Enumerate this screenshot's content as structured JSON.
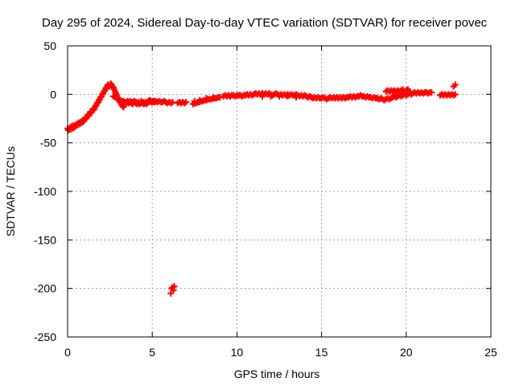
{
  "chart_data": {
    "type": "scatter",
    "title": "Day 295 of 2024, Sidereal Day-to-day VTEC variation (SDTVAR) for receiver povec",
    "xlabel": "GPS time / hours",
    "ylabel": "SDTVAR / TECUs",
    "xlim": [
      0,
      25
    ],
    "ylim": [
      -250,
      50
    ],
    "xticks": [
      0,
      5,
      10,
      15,
      20,
      25
    ],
    "xtick_labels": [
      "0",
      "5",
      "10",
      "15",
      "20",
      "25"
    ],
    "yticks": [
      -250,
      -200,
      -150,
      -100,
      -50,
      0,
      50
    ],
    "ytick_labels": [
      "-250",
      "-200",
      "-150",
      "-100",
      "-50",
      "0",
      "50"
    ],
    "grid": true,
    "marker": "plus",
    "series": [
      {
        "name": "SDTVAR",
        "color": "#ff0000",
        "points": [
          [
            0.0,
            -35
          ],
          [
            0.05,
            -37
          ],
          [
            0.1,
            -36
          ],
          [
            0.15,
            -34
          ],
          [
            0.2,
            -36
          ],
          [
            0.25,
            -33
          ],
          [
            0.3,
            -35
          ],
          [
            0.35,
            -32
          ],
          [
            0.4,
            -34
          ],
          [
            0.45,
            -33
          ],
          [
            0.5,
            -31
          ],
          [
            0.55,
            -32
          ],
          [
            0.6,
            -30
          ],
          [
            0.65,
            -31
          ],
          [
            0.7,
            -29
          ],
          [
            0.75,
            -30
          ],
          [
            0.8,
            -28
          ],
          [
            0.85,
            -29
          ],
          [
            0.9,
            -27
          ],
          [
            0.95,
            -28
          ],
          [
            1.0,
            -26
          ],
          [
            1.05,
            -24
          ],
          [
            1.1,
            -25
          ],
          [
            1.15,
            -23
          ],
          [
            1.2,
            -21
          ],
          [
            1.25,
            -22
          ],
          [
            1.3,
            -20
          ],
          [
            1.35,
            -18
          ],
          [
            1.4,
            -19
          ],
          [
            1.45,
            -17
          ],
          [
            1.5,
            -15
          ],
          [
            1.55,
            -16
          ],
          [
            1.6,
            -14
          ],
          [
            1.65,
            -12
          ],
          [
            1.7,
            -11
          ],
          [
            1.75,
            -9
          ],
          [
            1.8,
            -8
          ],
          [
            1.85,
            -6
          ],
          [
            1.9,
            -5
          ],
          [
            1.95,
            -3
          ],
          [
            2.0,
            -2
          ],
          [
            2.05,
            0
          ],
          [
            2.1,
            1
          ],
          [
            2.15,
            3
          ],
          [
            2.2,
            4
          ],
          [
            2.25,
            6
          ],
          [
            2.3,
            7
          ],
          [
            2.35,
            9
          ],
          [
            2.4,
            10
          ],
          [
            2.45,
            8
          ],
          [
            2.5,
            9
          ],
          [
            2.55,
            11
          ],
          [
            2.6,
            10
          ],
          [
            2.65,
            8
          ],
          [
            2.7,
            7
          ],
          [
            2.75,
            5
          ],
          [
            2.8,
            3
          ],
          [
            2.85,
            1
          ],
          [
            2.9,
            -1
          ],
          [
            2.95,
            -3
          ],
          [
            3.0,
            -5
          ],
          [
            3.05,
            -6
          ],
          [
            3.1,
            -8
          ],
          [
            3.15,
            -9
          ],
          [
            3.2,
            -11
          ],
          [
            3.25,
            -12
          ],
          [
            3.3,
            -13
          ],
          [
            3.35,
            -11
          ],
          [
            2.7,
            -2
          ],
          [
            2.8,
            -3
          ],
          [
            2.9,
            -4
          ],
          [
            3.0,
            -5
          ],
          [
            3.1,
            -6
          ],
          [
            3.2,
            -7
          ],
          [
            3.3,
            -7
          ],
          [
            3.4,
            -8
          ],
          [
            3.5,
            -8
          ],
          [
            3.55,
            -7
          ],
          [
            3.6,
            -9
          ],
          [
            3.65,
            -8
          ],
          [
            3.7,
            -7
          ],
          [
            3.75,
            -9
          ],
          [
            3.8,
            -8
          ],
          [
            3.85,
            -10
          ],
          [
            3.9,
            -8
          ],
          [
            3.95,
            -7
          ],
          [
            4.0,
            -9
          ],
          [
            4.05,
            -8
          ],
          [
            4.1,
            -10
          ],
          [
            4.15,
            -9
          ],
          [
            4.2,
            -8
          ],
          [
            4.25,
            -10
          ],
          [
            4.3,
            -9
          ],
          [
            4.35,
            -7
          ],
          [
            4.4,
            -9
          ],
          [
            4.45,
            -8
          ],
          [
            4.5,
            -10
          ],
          [
            4.55,
            -9
          ],
          [
            4.6,
            -8
          ],
          [
            4.65,
            -10
          ],
          [
            4.7,
            -9
          ],
          [
            4.75,
            -7
          ],
          [
            4.8,
            -8
          ],
          [
            4.85,
            -6
          ],
          [
            4.9,
            -7
          ],
          [
            4.95,
            -8
          ],
          [
            5.0,
            -7
          ],
          [
            5.05,
            -8
          ],
          [
            5.1,
            -7
          ],
          [
            5.15,
            -8
          ],
          [
            5.2,
            -7
          ],
          [
            5.3,
            -8
          ],
          [
            5.4,
            -7
          ],
          [
            5.5,
            -8
          ],
          [
            5.6,
            -8
          ],
          [
            5.7,
            -7
          ],
          [
            5.8,
            -8
          ],
          [
            5.9,
            -9
          ],
          [
            6.0,
            -8
          ],
          [
            6.1,
            -9
          ],
          [
            6.2,
            -8
          ],
          [
            6.5,
            -9
          ],
          [
            6.6,
            -8
          ],
          [
            6.7,
            -9
          ],
          [
            6.8,
            -8
          ],
          [
            6.9,
            -9
          ],
          [
            7.0,
            -8
          ],
          [
            6.1,
            -205
          ],
          [
            6.15,
            -200
          ],
          [
            6.2,
            -199
          ],
          [
            6.25,
            -202
          ],
          [
            6.3,
            -198
          ],
          [
            7.4,
            -10
          ],
          [
            7.5,
            -9
          ],
          [
            7.6,
            -9
          ],
          [
            7.7,
            -8
          ],
          [
            7.8,
            -8
          ],
          [
            7.9,
            -7
          ],
          [
            8.0,
            -7
          ],
          [
            8.1,
            -6
          ],
          [
            8.2,
            -6
          ],
          [
            8.3,
            -5
          ],
          [
            8.4,
            -5
          ],
          [
            8.5,
            -5
          ],
          [
            8.6,
            -4
          ],
          [
            8.7,
            -4
          ],
          [
            8.8,
            -4
          ],
          [
            8.9,
            -3
          ],
          [
            9.0,
            -3
          ],
          [
            7.5,
            -7
          ],
          [
            7.8,
            -6
          ],
          [
            8.2,
            -4
          ],
          [
            8.6,
            -3
          ],
          [
            9.2,
            -2
          ],
          [
            9.3,
            -1
          ],
          [
            9.4,
            -2
          ],
          [
            9.5,
            -1
          ],
          [
            9.6,
            -2
          ],
          [
            9.7,
            -1
          ],
          [
            9.8,
            -1
          ],
          [
            9.9,
            -2
          ],
          [
            10.0,
            -1
          ],
          [
            10.1,
            -1
          ],
          [
            10.2,
            -1
          ],
          [
            10.3,
            -2
          ],
          [
            10.4,
            -1
          ],
          [
            10.5,
            -1
          ],
          [
            10.6,
            0
          ],
          [
            10.7,
            -1
          ],
          [
            10.8,
            0
          ],
          [
            10.9,
            -1
          ],
          [
            11.0,
            0
          ],
          [
            11.1,
            1
          ],
          [
            11.2,
            0
          ],
          [
            11.3,
            1
          ],
          [
            11.4,
            0
          ],
          [
            11.5,
            1
          ],
          [
            11.6,
            0
          ],
          [
            11.7,
            1
          ],
          [
            11.8,
            0
          ],
          [
            11.9,
            1
          ],
          [
            12.0,
            0
          ],
          [
            12.1,
            -1
          ],
          [
            12.2,
            0
          ],
          [
            12.3,
            1
          ],
          [
            12.4,
            0
          ],
          [
            12.5,
            -1
          ],
          [
            12.6,
            0
          ],
          [
            12.7,
            -1
          ],
          [
            12.8,
            0
          ],
          [
            12.9,
            -1
          ],
          [
            13.0,
            0
          ],
          [
            13.1,
            -1
          ],
          [
            13.2,
            0
          ],
          [
            13.3,
            -1
          ],
          [
            13.4,
            -1
          ],
          [
            13.5,
            0
          ],
          [
            13.6,
            -1
          ],
          [
            13.7,
            -2
          ],
          [
            13.8,
            -1
          ],
          [
            13.9,
            -2
          ],
          [
            14.0,
            -1
          ],
          [
            14.1,
            -2
          ],
          [
            11.5,
            -2
          ],
          [
            12.0,
            -2
          ],
          [
            12.5,
            -2
          ],
          [
            13.0,
            -2
          ],
          [
            13.5,
            -3
          ],
          [
            14.2,
            -3
          ],
          [
            14.3,
            -2
          ],
          [
            14.4,
            -3
          ],
          [
            14.5,
            -4
          ],
          [
            14.6,
            -3
          ],
          [
            14.7,
            -4
          ],
          [
            14.8,
            -3
          ],
          [
            14.9,
            -4
          ],
          [
            15.0,
            -4
          ],
          [
            15.1,
            -3
          ],
          [
            15.2,
            -4
          ],
          [
            15.3,
            -5
          ],
          [
            15.4,
            -4
          ],
          [
            15.5,
            -3
          ],
          [
            15.6,
            -4
          ],
          [
            15.7,
            -3
          ],
          [
            15.8,
            -4
          ],
          [
            15.9,
            -3
          ],
          [
            16.0,
            -4
          ],
          [
            16.1,
            -3
          ],
          [
            16.2,
            -4
          ],
          [
            16.3,
            -3
          ],
          [
            16.4,
            -4
          ],
          [
            16.5,
            -3
          ],
          [
            16.6,
            -3
          ],
          [
            16.7,
            -2
          ],
          [
            16.8,
            -3
          ],
          [
            16.9,
            -2
          ],
          [
            17.0,
            -3
          ],
          [
            17.1,
            -2
          ],
          [
            17.2,
            -2
          ],
          [
            17.3,
            -1
          ],
          [
            17.4,
            -2
          ],
          [
            17.5,
            -2
          ],
          [
            17.6,
            -3
          ],
          [
            17.7,
            -2
          ],
          [
            17.8,
            -3
          ],
          [
            17.9,
            -3
          ],
          [
            18.0,
            -4
          ],
          [
            18.1,
            -3
          ],
          [
            18.2,
            -4
          ],
          [
            18.3,
            -4
          ],
          [
            18.4,
            -5
          ],
          [
            18.5,
            -4
          ],
          [
            18.6,
            -5
          ],
          [
            18.7,
            -6
          ],
          [
            18.8,
            -5
          ],
          [
            18.9,
            -4
          ],
          [
            19.0,
            -5
          ],
          [
            19.1,
            -4
          ],
          [
            18.8,
            3
          ],
          [
            18.9,
            4
          ],
          [
            19.0,
            3
          ],
          [
            19.1,
            4
          ],
          [
            19.2,
            3
          ],
          [
            19.3,
            4
          ],
          [
            19.4,
            3
          ],
          [
            19.5,
            4
          ],
          [
            19.6,
            3
          ],
          [
            19.7,
            4
          ],
          [
            19.8,
            5
          ],
          [
            19.9,
            3
          ],
          [
            20.0,
            4
          ],
          [
            20.1,
            5
          ],
          [
            20.2,
            3
          ],
          [
            19.2,
            -3
          ],
          [
            19.3,
            -2
          ],
          [
            19.4,
            -3
          ],
          [
            19.5,
            -2
          ],
          [
            19.6,
            -1
          ],
          [
            19.7,
            -2
          ],
          [
            19.8,
            -1
          ],
          [
            19.9,
            0
          ],
          [
            20.0,
            -1
          ],
          [
            20.1,
            0
          ],
          [
            20.2,
            1
          ],
          [
            20.3,
            0
          ],
          [
            20.4,
            1
          ],
          [
            20.5,
            2
          ],
          [
            20.6,
            1
          ],
          [
            20.7,
            2
          ],
          [
            20.8,
            1
          ],
          [
            20.9,
            2
          ],
          [
            21.0,
            1
          ],
          [
            21.1,
            2
          ],
          [
            21.2,
            2
          ],
          [
            21.3,
            1
          ],
          [
            21.4,
            2
          ],
          [
            21.5,
            2
          ],
          [
            22.0,
            -1
          ],
          [
            22.1,
            0
          ],
          [
            22.2,
            -1
          ],
          [
            22.3,
            0
          ],
          [
            22.4,
            -1
          ],
          [
            22.5,
            0
          ],
          [
            22.6,
            -1
          ],
          [
            22.7,
            0
          ],
          [
            22.8,
            -1
          ],
          [
            22.9,
            0
          ],
          [
            22.8,
            8
          ],
          [
            22.9,
            10
          ]
        ]
      }
    ]
  }
}
